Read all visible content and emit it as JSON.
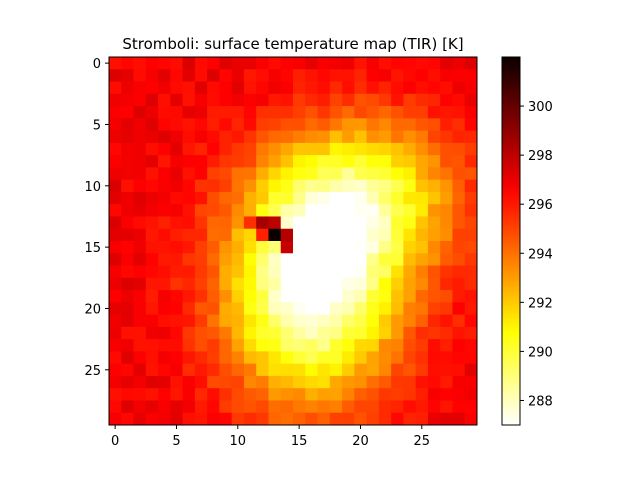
{
  "chart_data": {
    "type": "heatmap",
    "title": "Stromboli: surface temperature map (TIR) [K]",
    "xlabel": "",
    "ylabel": "",
    "colormap": "hot_r",
    "rows": 30,
    "cols": 30,
    "x_ticks": [
      0,
      5,
      10,
      15,
      20,
      25
    ],
    "y_ticks": [
      0,
      5,
      10,
      15,
      20,
      25
    ],
    "colorbar": {
      "range": [
        287.0,
        302.0
      ],
      "ticks": [
        288,
        290,
        292,
        294,
        296,
        298,
        300
      ]
    },
    "field": {
      "description_of_values": "temperature in K",
      "background_k": 296.8,
      "cool_plume": {
        "center_row": 19.0,
        "center_col": 16.0,
        "sigma_row": 6.0,
        "sigma_col": 5.0,
        "delta_k": -9.5
      },
      "cool_lobe": {
        "center_row": 11.0,
        "center_col": 20.0,
        "sigma_row": 4.5,
        "sigma_col": 5.5,
        "delta_k": -6.5
      },
      "hotspots": [
        {
          "row": 14,
          "col": 13,
          "value_k": 302.0
        },
        {
          "row": 13,
          "col": 12,
          "value_k": 298.5
        },
        {
          "row": 13,
          "col": 13,
          "value_k": 298.0
        },
        {
          "row": 14,
          "col": 14,
          "value_k": 298.2
        },
        {
          "row": 15,
          "col": 14,
          "value_k": 297.8
        },
        {
          "row": 14,
          "col": 12,
          "value_k": 295.8
        },
        {
          "row": 13,
          "col": 11,
          "value_k": 295.5
        }
      ]
    }
  }
}
